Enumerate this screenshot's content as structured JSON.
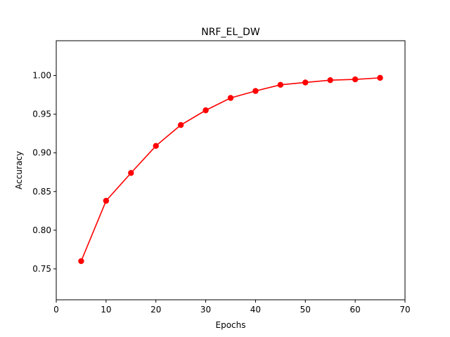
{
  "chart_data": {
    "type": "line",
    "title": "NRF_EL_DW",
    "xlabel": "Epochs",
    "ylabel": "Accuracy",
    "xlim": [
      0,
      70
    ],
    "ylim": [
      0.71,
      1.045
    ],
    "xticks": [
      0,
      10,
      20,
      30,
      40,
      50,
      60,
      70
    ],
    "yticks": [
      0.75,
      0.8,
      0.85,
      0.9,
      0.95,
      1.0
    ],
    "xtick_labels": [
      "0",
      "10",
      "20",
      "30",
      "40",
      "50",
      "60",
      "70"
    ],
    "ytick_labels": [
      "0.75",
      "0.80",
      "0.85",
      "0.90",
      "0.95",
      "1.00"
    ],
    "grid": false,
    "series": [
      {
        "color": "#ff0000",
        "marker": "circle",
        "x": [
          5,
          10,
          15,
          20,
          25,
          30,
          35,
          40,
          45,
          50,
          55,
          60,
          65
        ],
        "y": [
          0.76,
          0.838,
          0.874,
          0.909,
          0.936,
          0.955,
          0.971,
          0.98,
          0.988,
          0.991,
          0.994,
          0.995,
          0.997
        ]
      }
    ]
  }
}
